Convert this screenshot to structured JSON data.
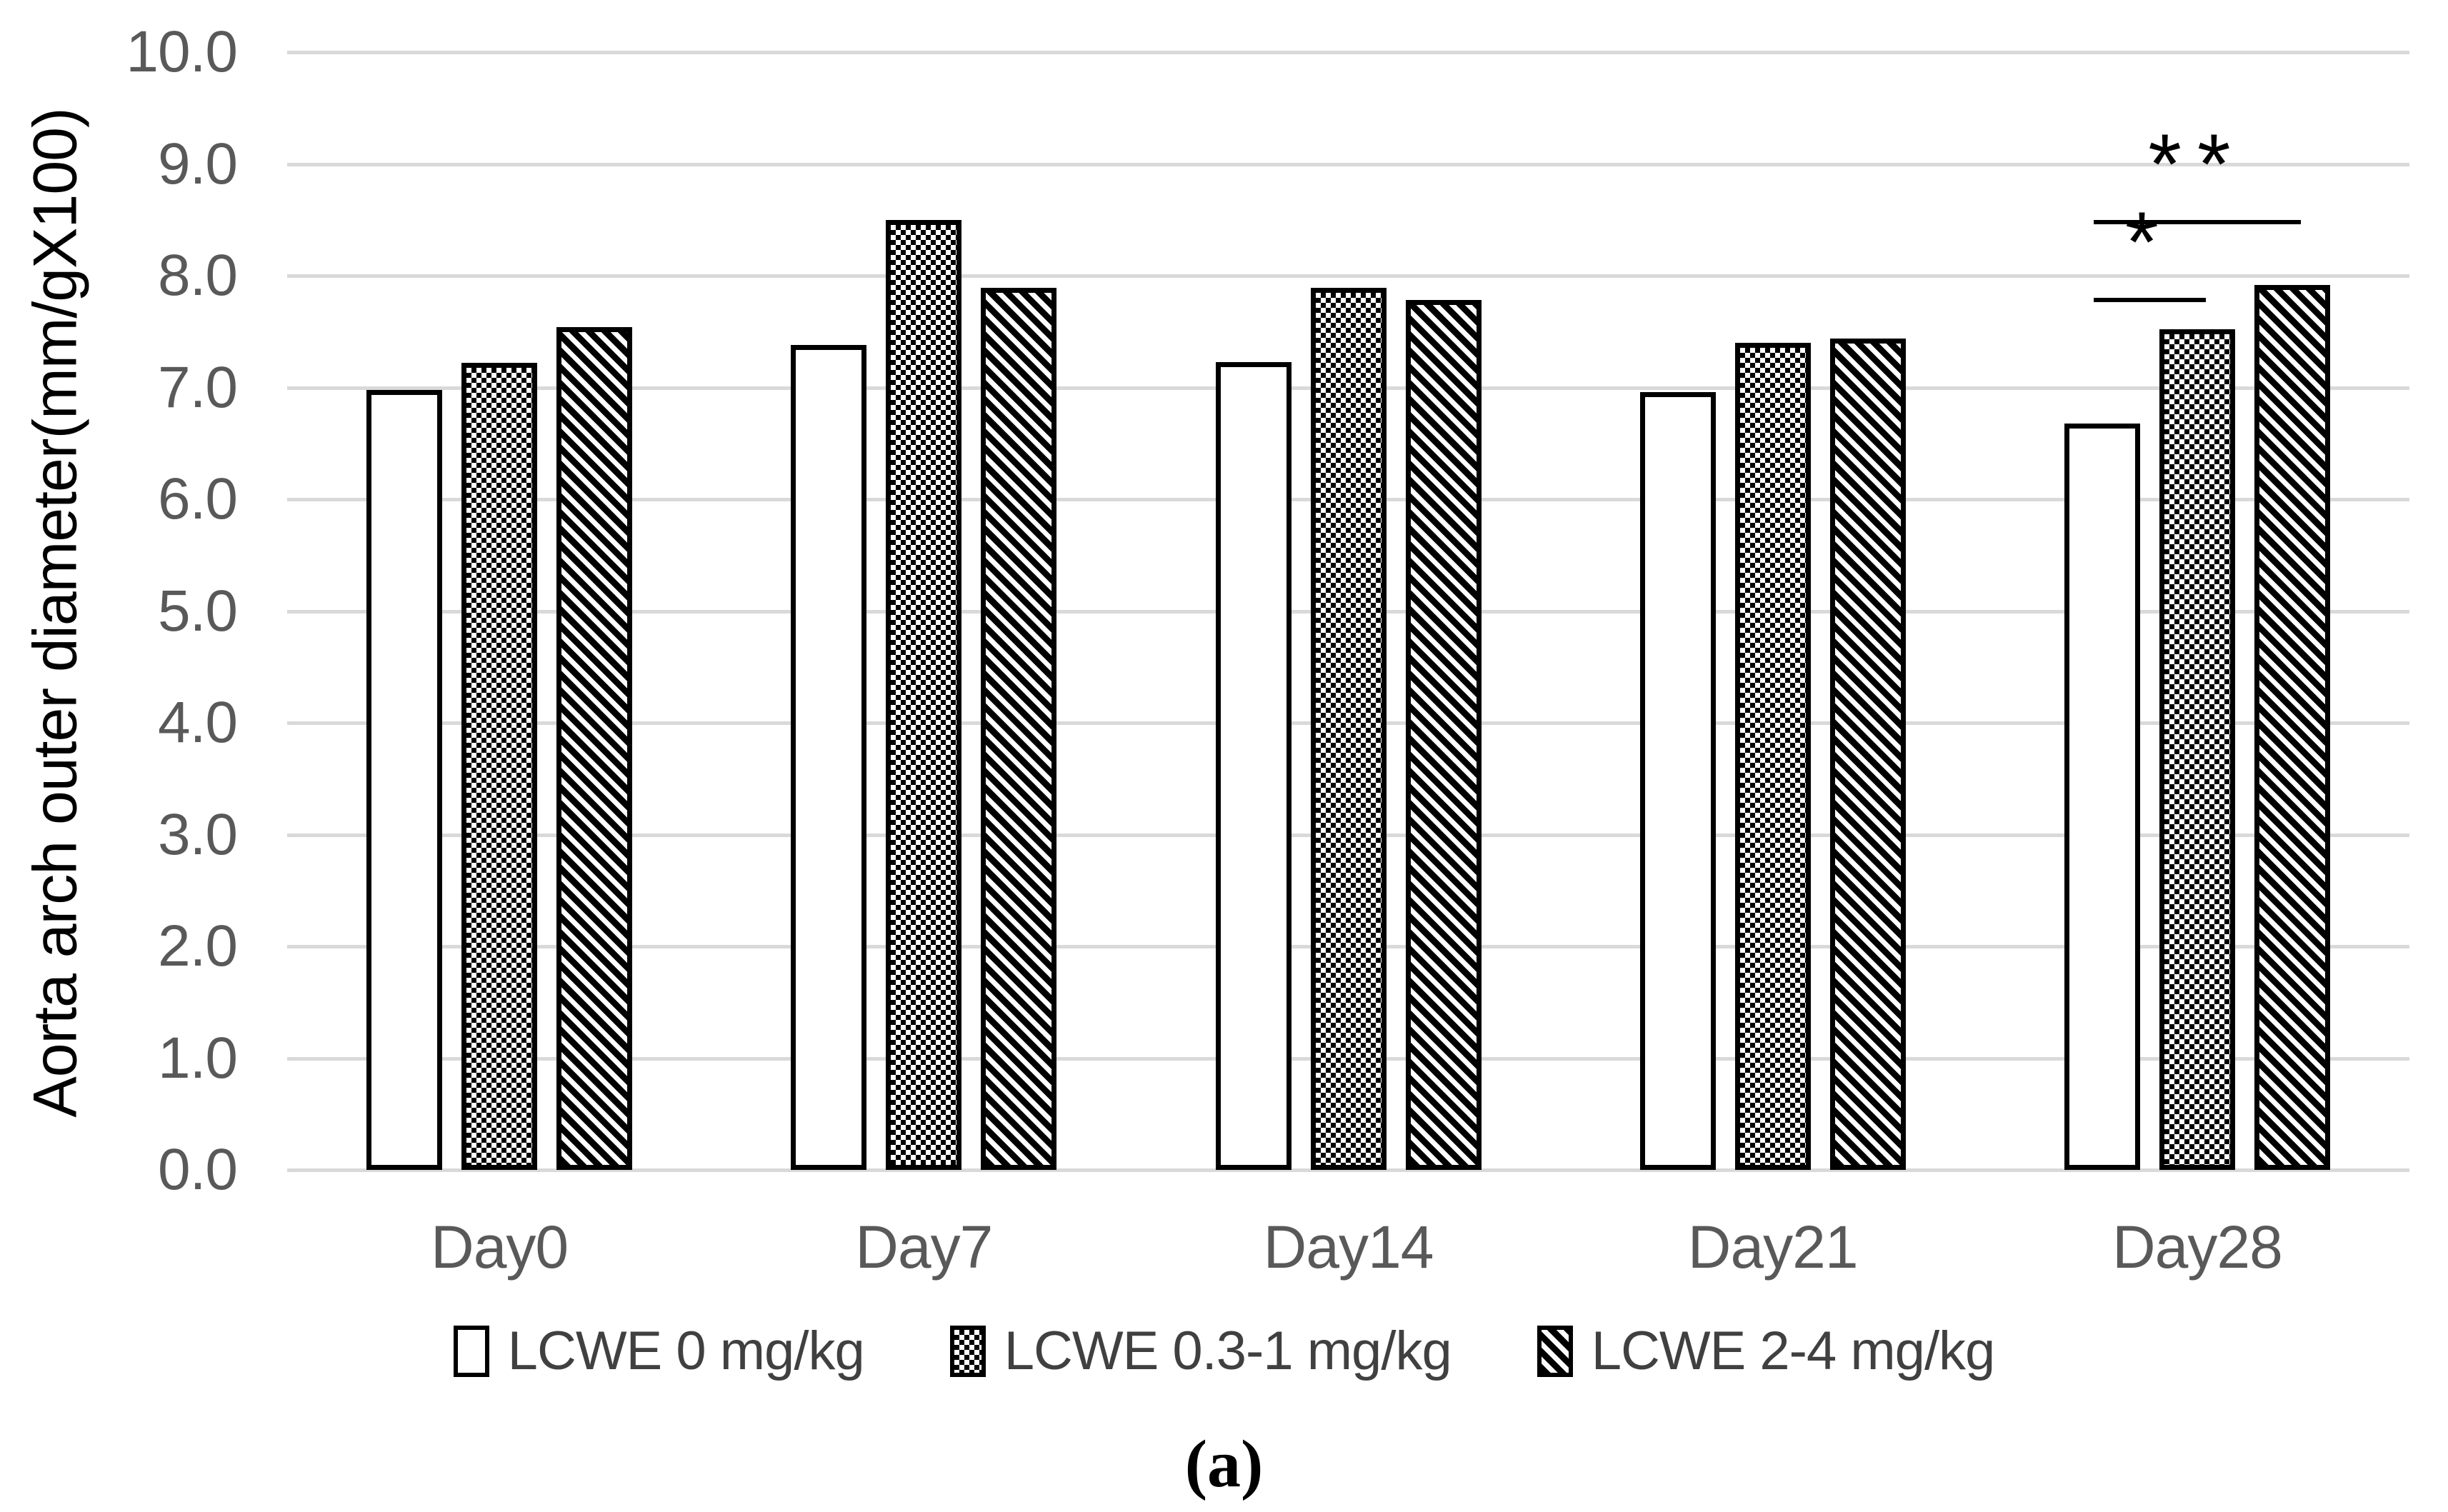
{
  "figure": {
    "caption": "(a)",
    "colors": {
      "grid": "#d9d9d9",
      "tick_text": "#595959",
      "legend_text": "#404040",
      "bar_border": "#000000"
    }
  },
  "chart_data": {
    "type": "bar",
    "title": "",
    "xlabel": "",
    "ylabel": "Aorta arch outer diameter(mm/gX100)",
    "ylim": [
      0,
      10
    ],
    "grid": "horizontal",
    "legend_position": "bottom",
    "y_tick_labels": [
      "0.0",
      "1.0",
      "2.0",
      "3.0",
      "4.0",
      "5.0",
      "6.0",
      "7.0",
      "8.0",
      "9.0",
      "10.0"
    ],
    "categories": [
      "Day0",
      "Day7",
      "Day14",
      "Day21",
      "Day28"
    ],
    "series": [
      {
        "name": "LCWE 0 mg/kg",
        "pattern": "white",
        "values": [
          6.98,
          7.38,
          7.23,
          6.96,
          6.68
        ]
      },
      {
        "name": "LCWE 0.3-1 mg/kg",
        "pattern": "checker",
        "values": [
          7.22,
          8.5,
          7.89,
          7.4,
          7.52
        ]
      },
      {
        "name": "LCWE 2-4 mg/kg",
        "pattern": "diagonal",
        "values": [
          7.54,
          7.89,
          7.78,
          7.44,
          7.92
        ]
      }
    ],
    "annotations": [
      {
        "text": "*",
        "category": "Day28",
        "from_series": 0,
        "to_series": 1,
        "line_y": 7.8
      },
      {
        "text": "**",
        "category": "Day28",
        "from_series": 0,
        "to_series": 2,
        "line_y": 8.5
      }
    ]
  }
}
